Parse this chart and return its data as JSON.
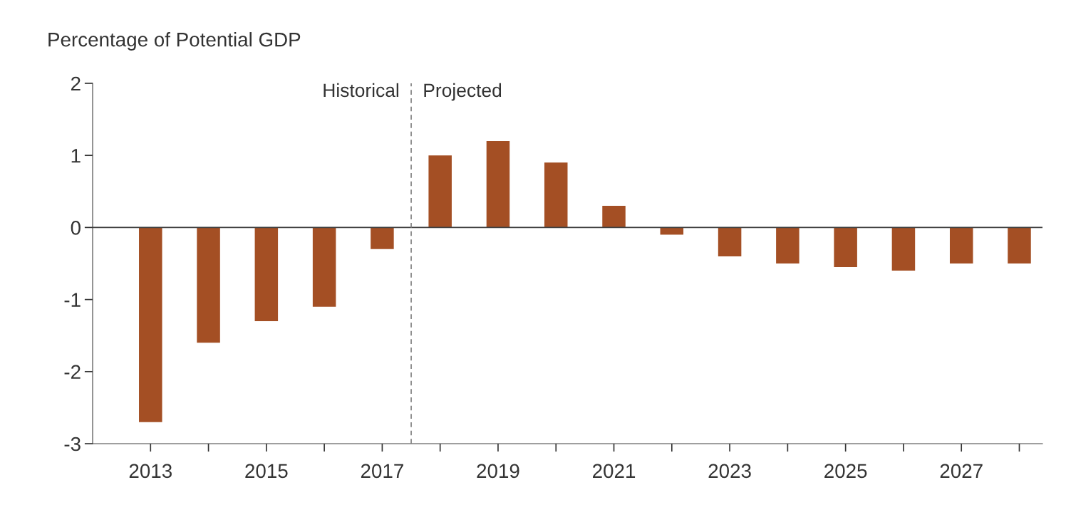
{
  "chart_data": {
    "type": "bar",
    "ylabel": "Percentage of Potential GDP",
    "x": [
      2013,
      2014,
      2015,
      2016,
      2017,
      2018,
      2019,
      2020,
      2021,
      2022,
      2023,
      2024,
      2025,
      2026,
      2027,
      2028
    ],
    "values": [
      -2.7,
      -1.6,
      -1.3,
      -1.1,
      -0.3,
      1.0,
      1.2,
      0.9,
      0.3,
      -0.1,
      -0.4,
      -0.5,
      -0.55,
      -0.6,
      -0.5,
      -0.5
    ],
    "color": "#a44f24",
    "xlim": [
      2012,
      2028.4
    ],
    "xticks": [
      2013,
      {
        "value": 2014,
        "label": null
      },
      2015,
      {
        "value": 2016,
        "label": null
      },
      2017,
      {
        "value": 2018,
        "label": null
      },
      2019,
      {
        "value": 2020,
        "label": null
      },
      2021,
      {
        "value": 2022,
        "label": null
      },
      2023,
      {
        "value": 2024,
        "label": null
      },
      2025,
      {
        "value": 2026,
        "label": null
      },
      2027,
      {
        "value": 2028,
        "label": null
      }
    ],
    "ylim": [
      -3,
      2
    ],
    "yticks": [
      -3,
      -2,
      -1,
      0,
      1,
      2
    ],
    "ref_lines": [
      {
        "axis": "y",
        "value": 0,
        "color": "#404040",
        "line_style": "solid"
      },
      {
        "axis": "x",
        "value": 2017.5,
        "color": "#808080",
        "line_style": "dashed"
      }
    ],
    "annotations": [
      "Historical",
      "Projected"
    ],
    "grid": false,
    "legend": false
  }
}
